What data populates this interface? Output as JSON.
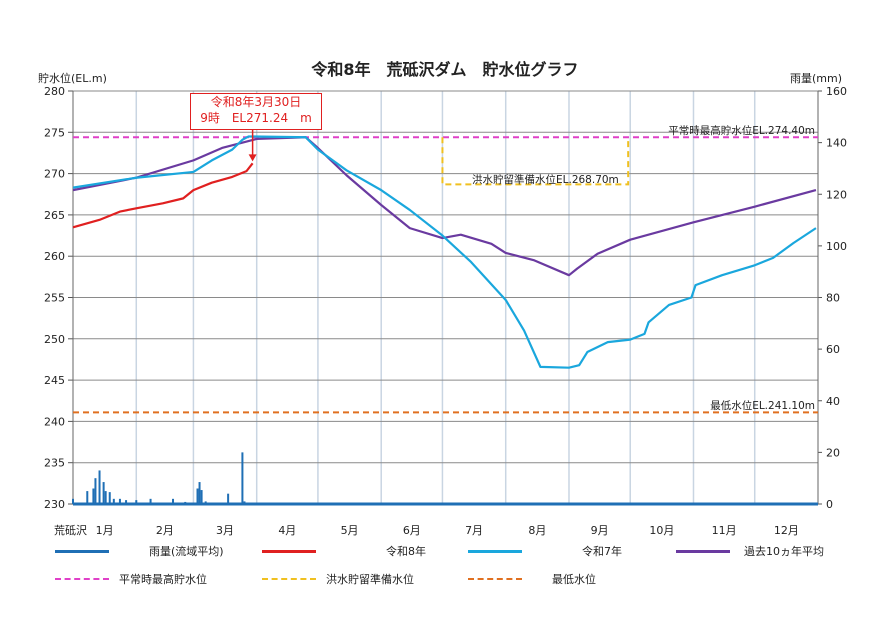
{
  "title": "令和8年　荒砥沢ダム　貯水位グラフ",
  "place_label": "荒砥沢",
  "annotation": {
    "line1": "令和8年3月30日",
    "line2": "9時　EL271.24　m"
  },
  "reference_labels": {
    "normal_max": "平常時最高貯水位EL.274.40m",
    "flood_prep": "洪水貯留準備水位EL.268.70m",
    "minimum": "最低水位EL.241.10m"
  },
  "legend": [
    {
      "label": "雨量(流域平均)",
      "color": "#1f6fb5",
      "style": "solid"
    },
    {
      "label": "令和8年",
      "color": "#e02020",
      "style": "solid"
    },
    {
      "label": "令和7年",
      "color": "#1aa7dd",
      "style": "solid"
    },
    {
      "label": "過去10ヵ年平均",
      "color": "#6a3aa0",
      "style": "solid"
    },
    {
      "label": "平常時最高貯水位",
      "color": "#e040c8",
      "style": "dashed"
    },
    {
      "label": "洪水貯留準備水位",
      "color": "#f0c020",
      "style": "dashed"
    },
    {
      "label": "最低水位",
      "color": "#e07020",
      "style": "dashed"
    }
  ],
  "chart_data": {
    "type": "line",
    "title": "令和8年　荒砥沢ダム　貯水位グラフ",
    "ylabel": "貯水位(EL.m)",
    "y2label": "雨量(mm)",
    "ylim": [
      230,
      280
    ],
    "y2lim": [
      0,
      160
    ],
    "yticks": [
      280,
      275,
      270,
      265,
      260,
      255,
      250,
      245,
      240,
      235,
      230
    ],
    "y2ticks": [
      160,
      140,
      120,
      100,
      80,
      60,
      40,
      20,
      0
    ],
    "xticks": [
      "1月",
      "2月",
      "3月",
      "4月",
      "5月",
      "6月",
      "7月",
      "8月",
      "9月",
      "10月",
      "11月",
      "12月"
    ],
    "grid": true,
    "legend_position": "bottom",
    "series": [
      {
        "name": "令和8年",
        "color": "#e02020",
        "points": [
          [
            "1/1",
            263.5
          ],
          [
            "1/14",
            264.4
          ],
          [
            "1/24",
            265.4
          ],
          [
            "2/1",
            265.8
          ],
          [
            "2/14",
            266.4
          ],
          [
            "2/24",
            267.0
          ],
          [
            "3/1",
            268.0
          ],
          [
            "3/10",
            268.9
          ],
          [
            "3/20",
            269.6
          ],
          [
            "3/27",
            270.3
          ],
          [
            "3/30",
            271.24
          ]
        ]
      },
      {
        "name": "令和7年",
        "color": "#1aa7dd",
        "points": [
          [
            "1/1",
            268.3
          ],
          [
            "2/1",
            269.5
          ],
          [
            "3/1",
            270.2
          ],
          [
            "3/10",
            271.6
          ],
          [
            "3/20",
            272.9
          ],
          [
            "3/25",
            274.1
          ],
          [
            "3/28",
            274.5
          ],
          [
            "4/25",
            274.4
          ],
          [
            "5/1",
            272.9
          ],
          [
            "5/15",
            270.4
          ],
          [
            "6/1",
            268.0
          ],
          [
            "6/15",
            265.6
          ],
          [
            "7/1",
            262.5
          ],
          [
            "7/15",
            259.3
          ],
          [
            "8/1",
            254.7
          ],
          [
            "8/10",
            251.0
          ],
          [
            "8/18",
            246.6
          ],
          [
            "9/1",
            246.5
          ],
          [
            "9/6",
            246.8
          ],
          [
            "9/10",
            248.4
          ],
          [
            "9/20",
            249.6
          ],
          [
            "10/1",
            249.9
          ],
          [
            "10/8",
            250.6
          ],
          [
            "10/10",
            252.0
          ],
          [
            "10/20",
            254.1
          ],
          [
            "10/31",
            255.0
          ],
          [
            "11/2",
            256.5
          ],
          [
            "11/15",
            257.7
          ],
          [
            "12/1",
            258.9
          ],
          [
            "12/10",
            259.8
          ],
          [
            "12/20",
            261.6
          ],
          [
            "12/31",
            263.4
          ]
        ]
      },
      {
        "name": "過去10ヵ年平均",
        "color": "#6a3aa0",
        "points": [
          [
            "1/1",
            268.0
          ],
          [
            "2/1",
            269.5
          ],
          [
            "3/1",
            271.6
          ],
          [
            "3/15",
            273.1
          ],
          [
            "4/1",
            274.2
          ],
          [
            "4/25",
            274.4
          ],
          [
            "5/1",
            273.1
          ],
          [
            "5/15",
            269.8
          ],
          [
            "6/1",
            266.2
          ],
          [
            "6/15",
            263.4
          ],
          [
            "7/1",
            262.2
          ],
          [
            "7/10",
            262.6
          ],
          [
            "7/25",
            261.5
          ],
          [
            "8/1",
            260.4
          ],
          [
            "8/15",
            259.5
          ],
          [
            "9/1",
            257.7
          ],
          [
            "9/5",
            258.5
          ],
          [
            "9/15",
            260.3
          ],
          [
            "10/1",
            262.0
          ],
          [
            "11/1",
            264.1
          ],
          [
            "12/1",
            266.0
          ],
          [
            "12/31",
            268.0
          ]
        ]
      }
    ],
    "rainfall": {
      "name": "雨量(流域平均)",
      "color": "#1f6fb5",
      "bars": [
        [
          "1/1",
          2
        ],
        [
          "1/8",
          5
        ],
        [
          "1/11",
          6
        ],
        [
          "1/12",
          10
        ],
        [
          "1/14",
          13
        ],
        [
          "1/16",
          8.5
        ],
        [
          "1/17",
          5
        ],
        [
          "1/19",
          4.6
        ],
        [
          "1/21",
          2
        ],
        [
          "1/24",
          2
        ],
        [
          "1/27",
          1.5
        ],
        [
          "2/1",
          1.5
        ],
        [
          "2/8",
          2
        ],
        [
          "2/19",
          2
        ],
        [
          "2/25",
          0.8
        ],
        [
          "3/3",
          6
        ],
        [
          "3/4",
          8.5
        ],
        [
          "3/5",
          5.4
        ],
        [
          "3/7",
          1
        ],
        [
          "3/18",
          4
        ],
        [
          "3/25",
          20
        ],
        [
          "3/26",
          1
        ]
      ]
    },
    "reference_lines": [
      {
        "name": "平常時最高貯水位",
        "value": 274.4,
        "color": "#e040c8"
      },
      {
        "name": "洪水貯留準備水位",
        "value": 268.7,
        "from": "7/1",
        "to": "9/30",
        "color": "#f0c020"
      },
      {
        "name": "最低水位",
        "value": 241.1,
        "color": "#e07020"
      }
    ]
  }
}
